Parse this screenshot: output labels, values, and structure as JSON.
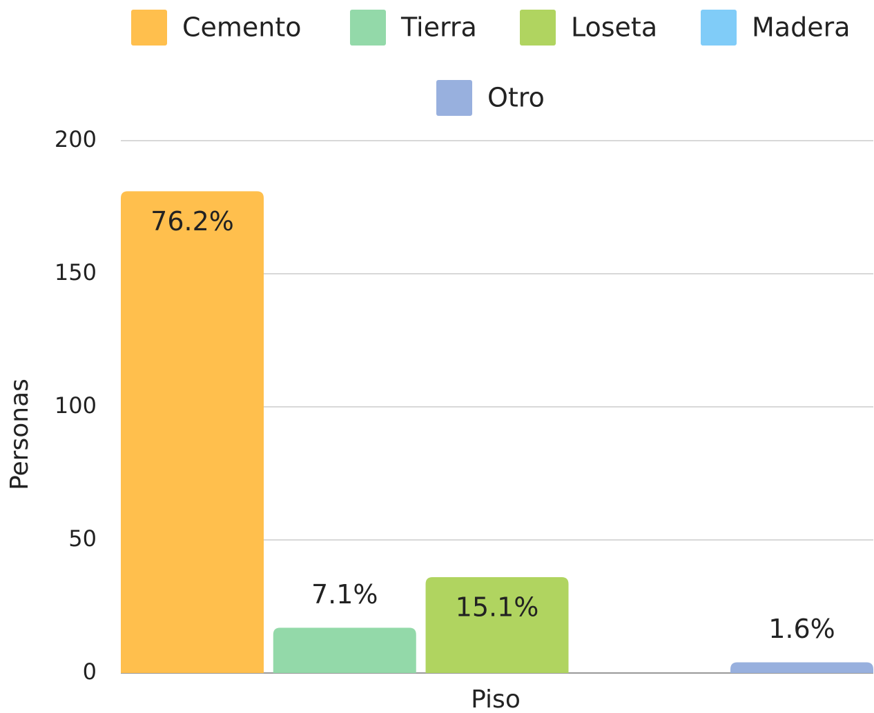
{
  "chart_data": {
    "type": "bar",
    "categories": [
      "Piso"
    ],
    "xlabel": "Piso",
    "ylabel": "Personas",
    "series": [
      {
        "name": "Cemento",
        "color": "#ffbf4d",
        "values": [
          181
        ],
        "value_labels": [
          "76.2%"
        ]
      },
      {
        "name": "Tierra",
        "color": "#93d9a9",
        "values": [
          17
        ],
        "value_labels": [
          "7.1%"
        ]
      },
      {
        "name": "Loseta",
        "color": "#b0d460",
        "values": [
          36
        ],
        "value_labels": [
          "15.1%"
        ]
      },
      {
        "name": "Madera",
        "color": "#80ccf8",
        "values": [
          0
        ]
      },
      {
        "name": "Otro",
        "color": "#98b0de",
        "values": [
          4
        ],
        "value_labels": [
          "1.6%"
        ]
      }
    ],
    "ylim": [
      0,
      200
    ],
    "yticks": [
      0,
      50,
      100,
      150,
      200
    ],
    "grid": true,
    "legend": "top"
  }
}
